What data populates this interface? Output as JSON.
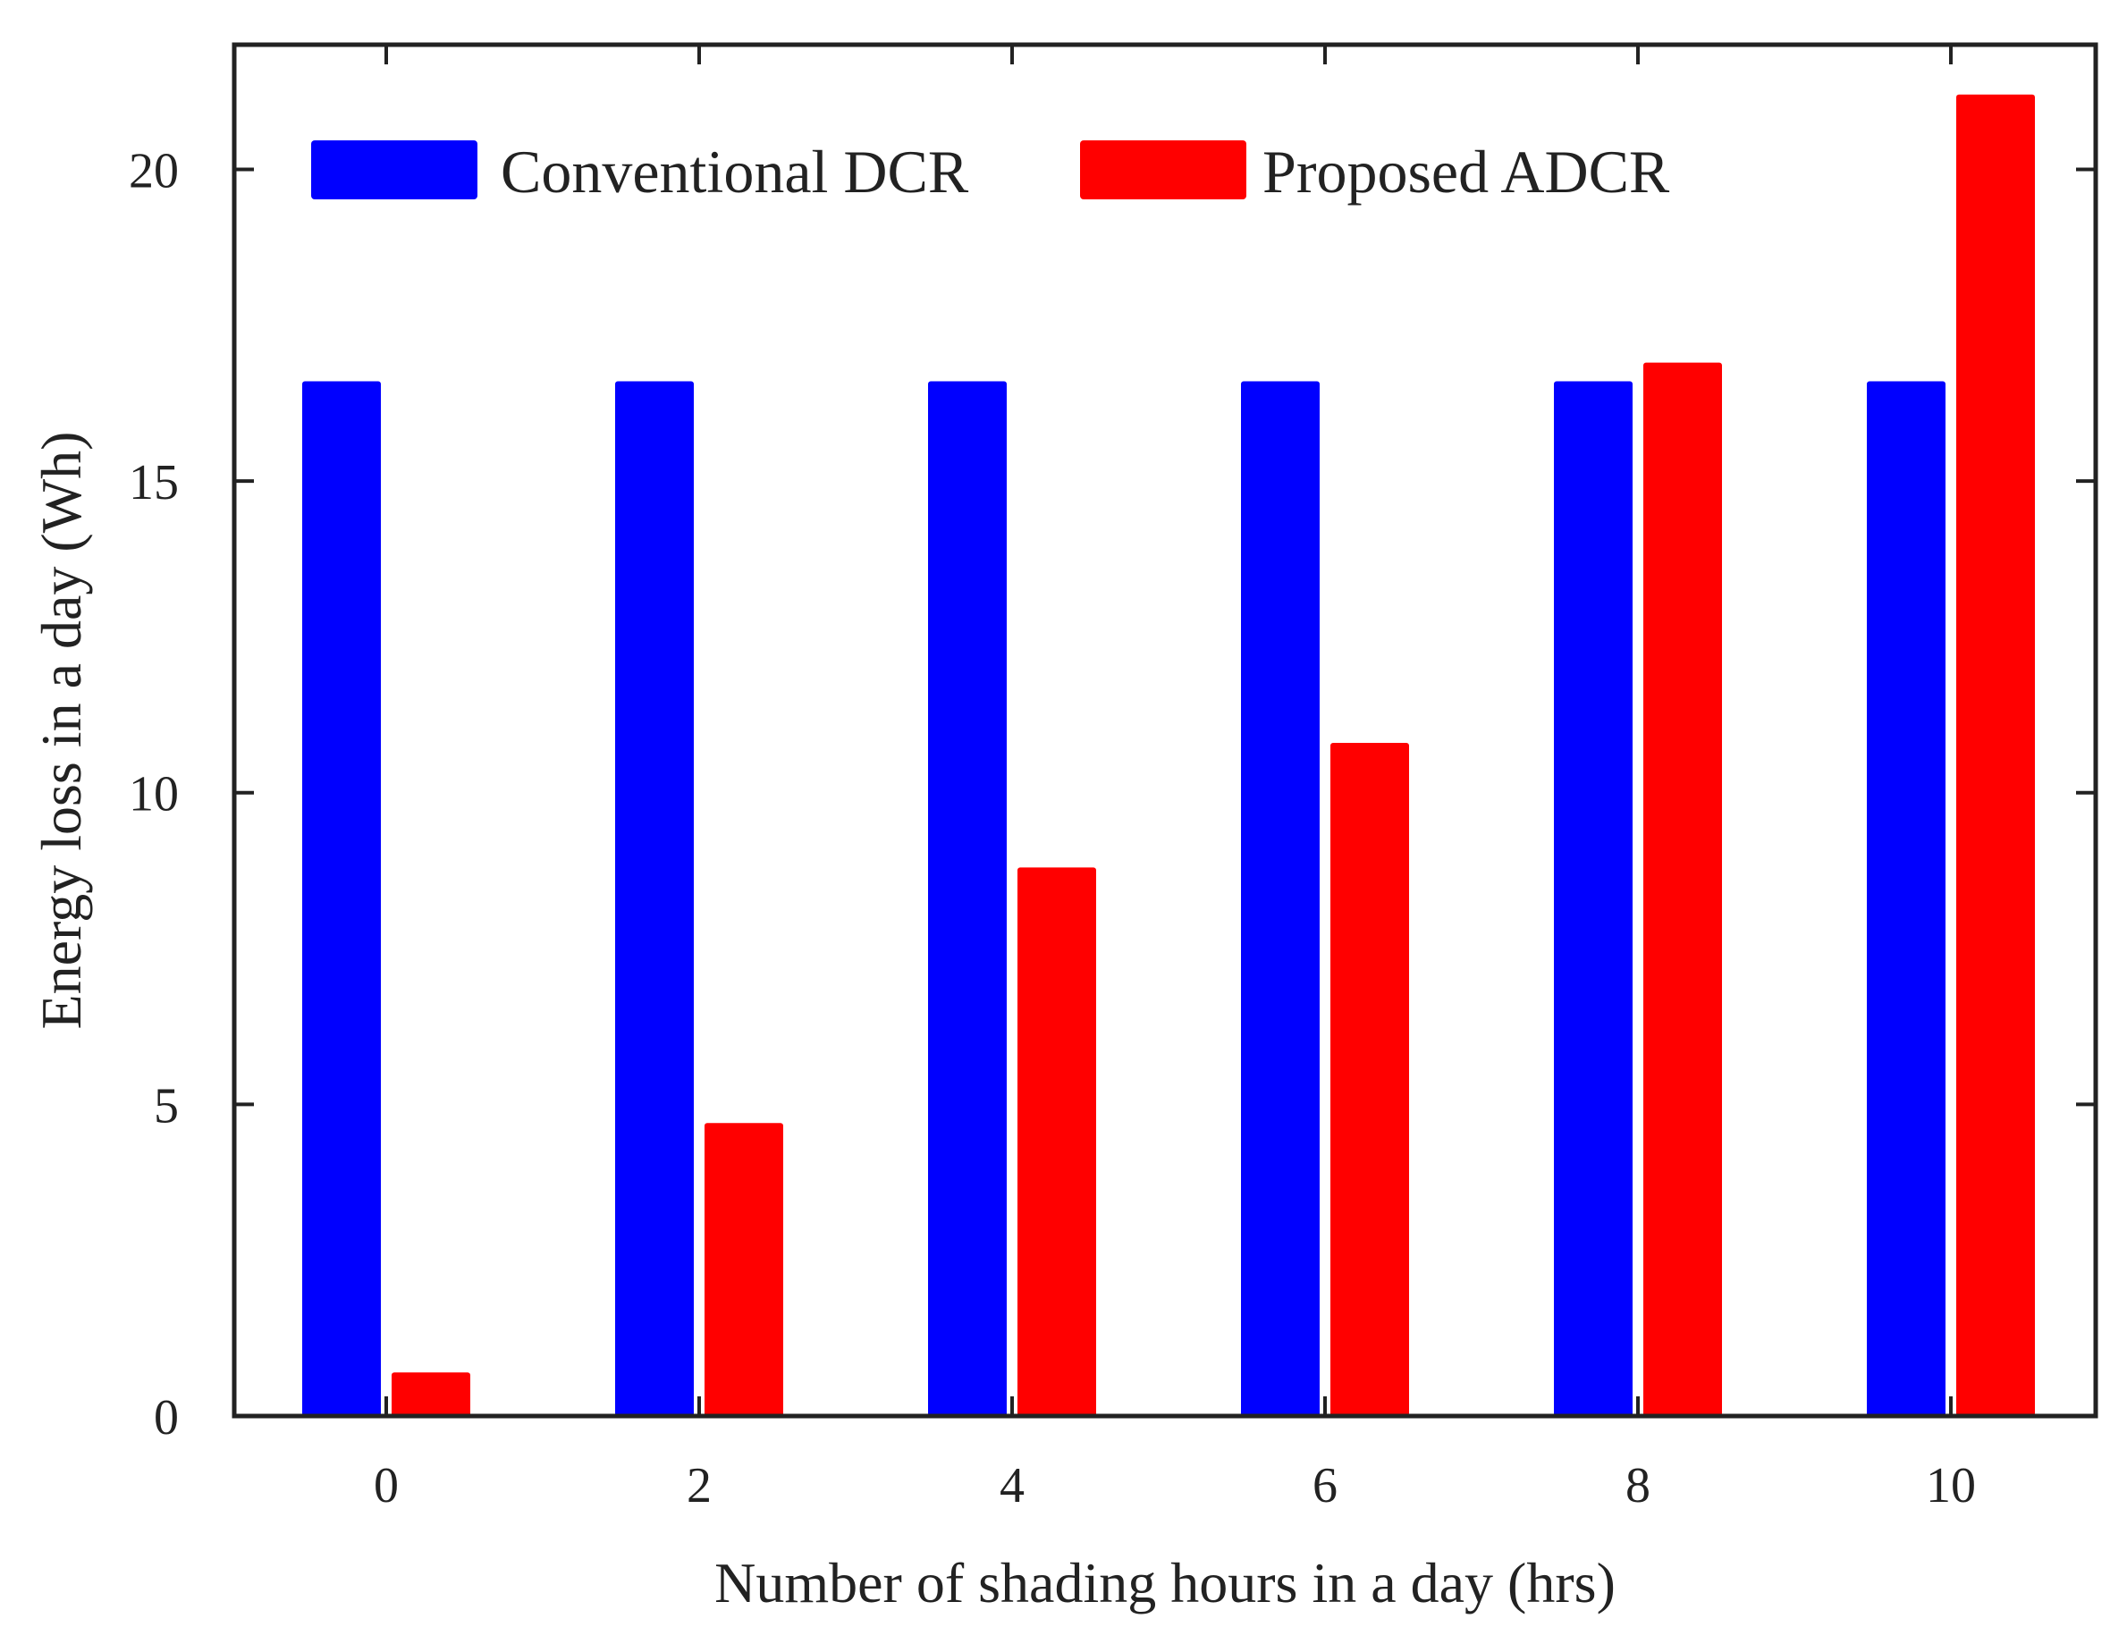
{
  "chart_data": {
    "type": "bar",
    "title": "",
    "xlabel": "Number of shading hours in a day (hrs)",
    "ylabel": "Energy loss in a day (Wh)",
    "categories": [
      "0",
      "2",
      "4",
      "6",
      "8",
      "10"
    ],
    "series": [
      {
        "name": "Conventional DCR",
        "color": "#0000ff",
        "values": [
          16.6,
          16.6,
          16.6,
          16.6,
          16.6,
          16.6
        ]
      },
      {
        "name": "Proposed ADCR",
        "color": "#ff0000",
        "values": [
          0.7,
          4.7,
          8.8,
          10.8,
          16.9,
          21.2
        ]
      }
    ],
    "ylim": [
      0,
      22
    ],
    "yticks": [
      0,
      5,
      10,
      15,
      20
    ],
    "legend": "top-left, horizontal",
    "grid": false
  }
}
